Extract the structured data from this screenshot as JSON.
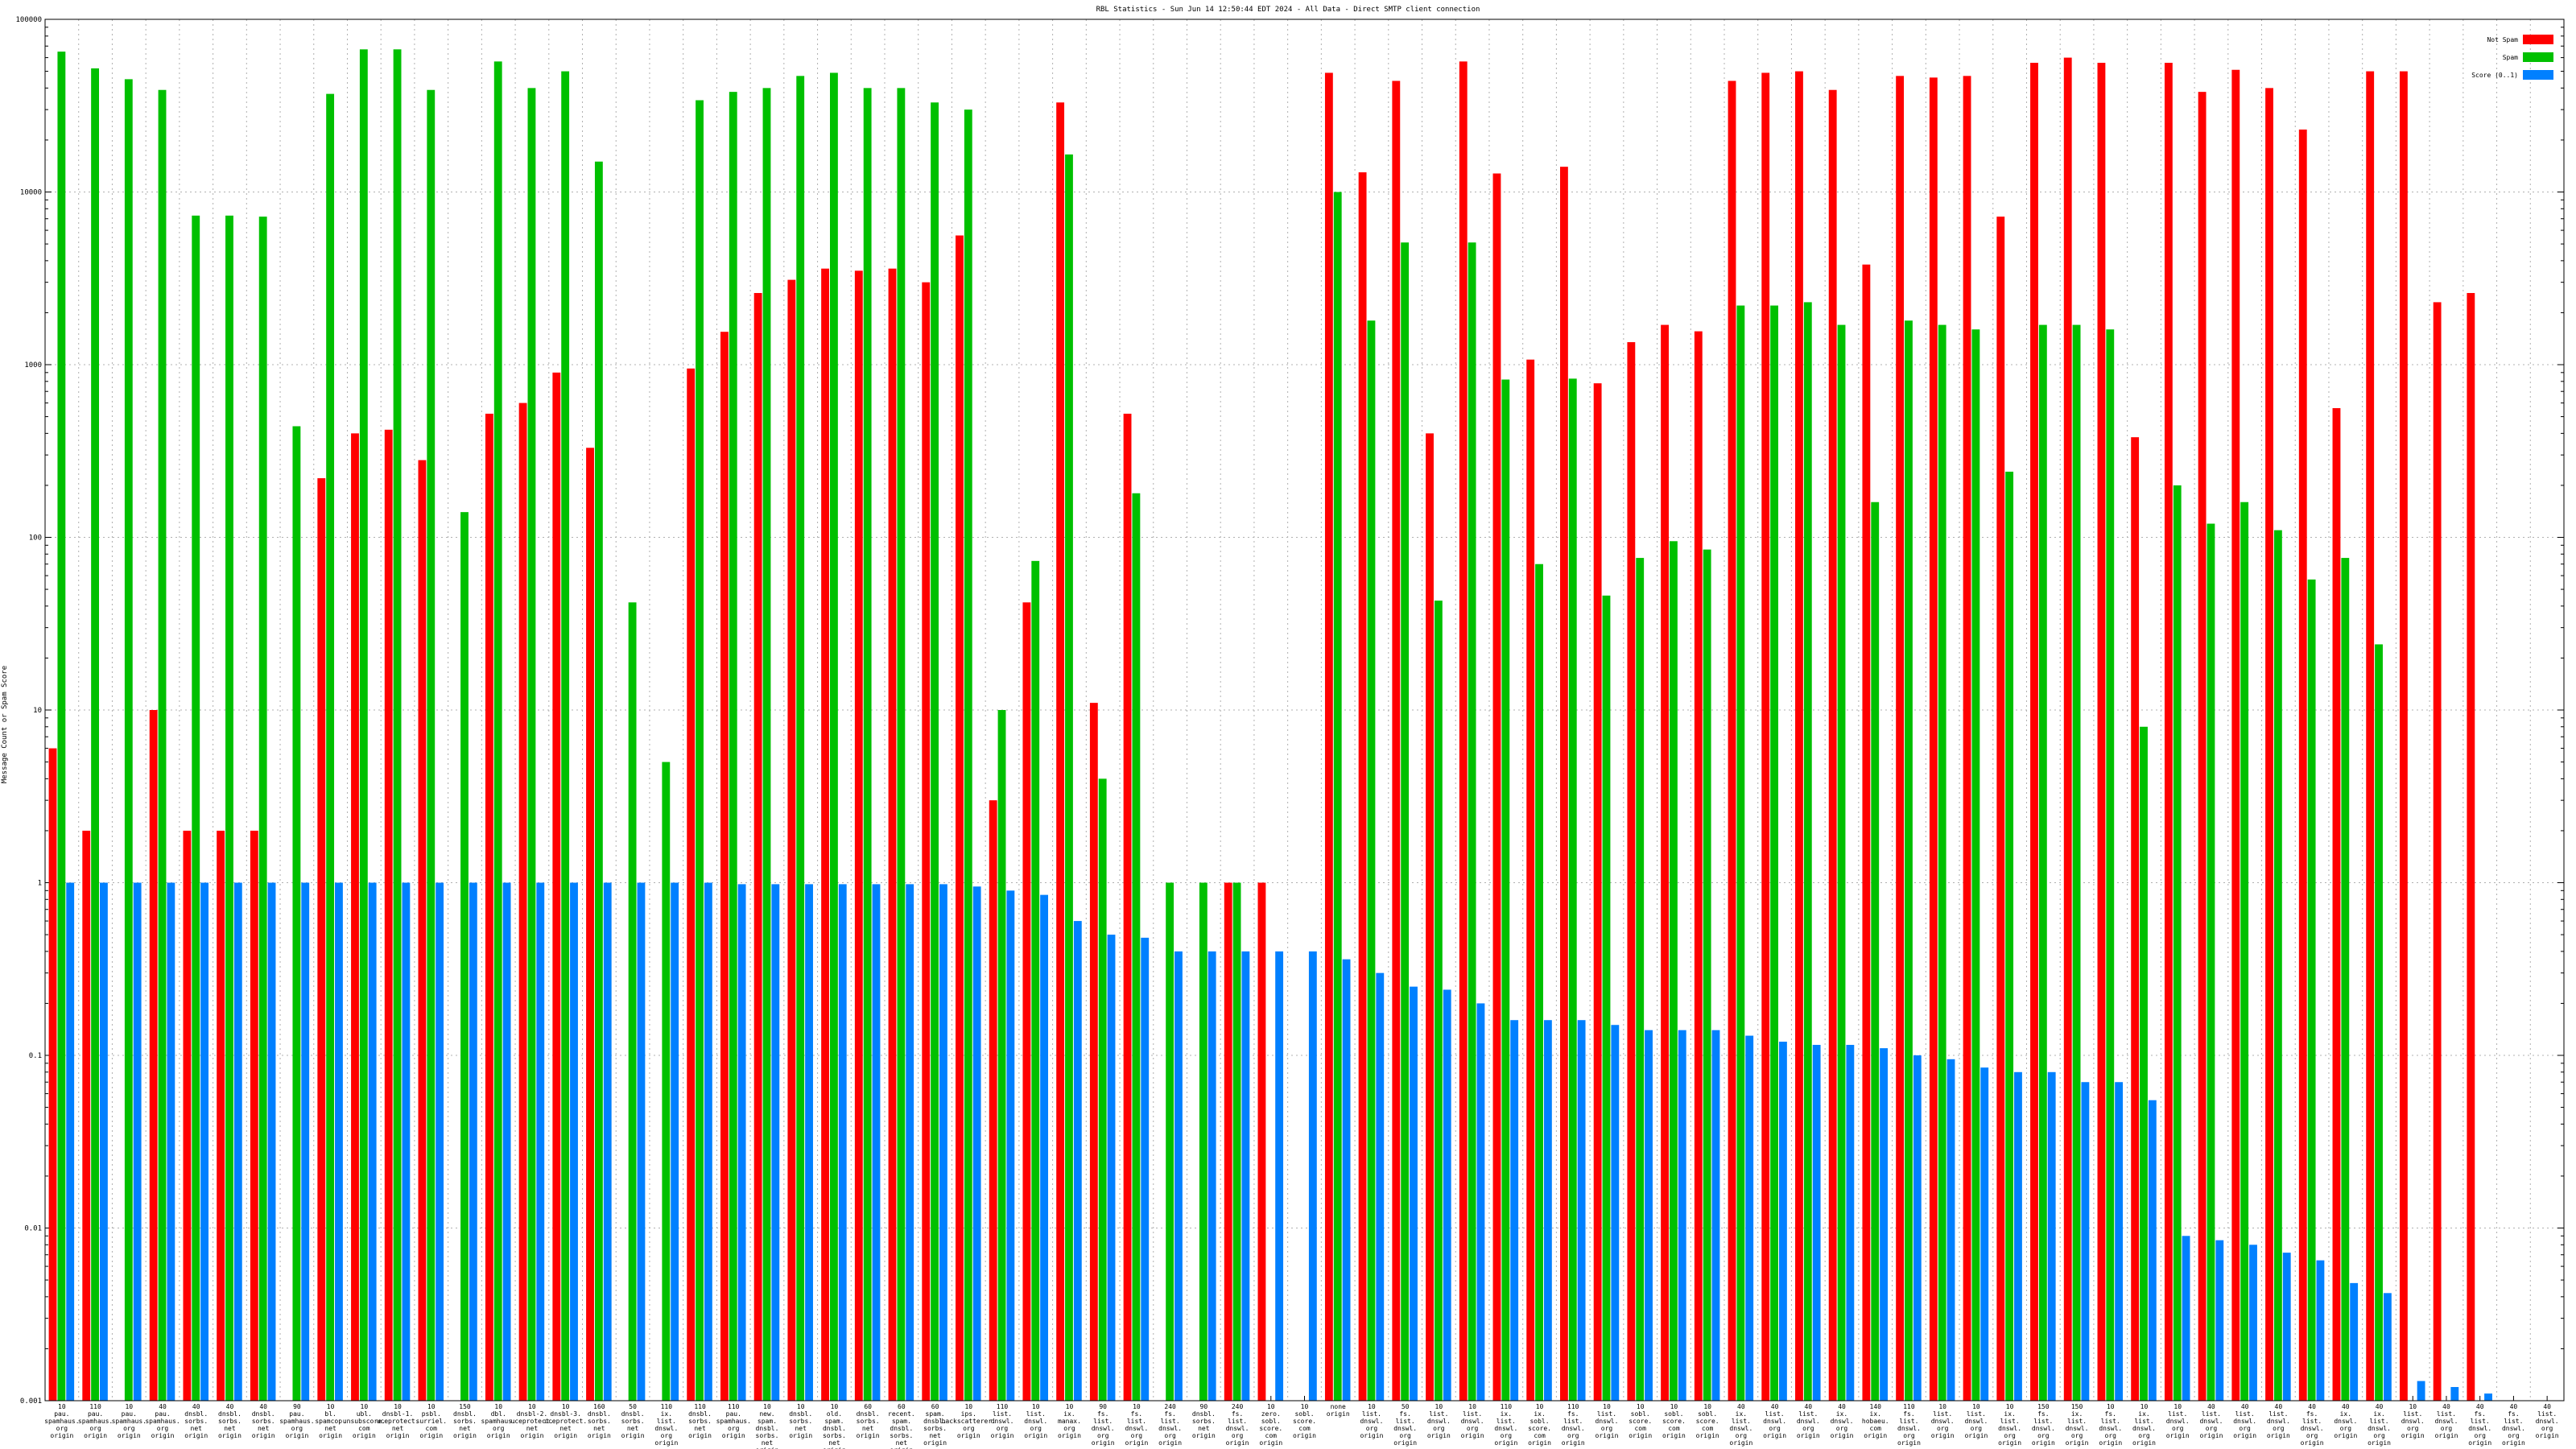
{
  "chart_data": {
    "type": "bar",
    "title": "RBL Statistics - Sun Jun 14 12:50:44 EDT 2024 - All Data - Direct SMTP client connection",
    "ylabel": "Message Count or Spam Score",
    "xlabel": "",
    "yscale": "log",
    "ylim": [
      0.001,
      100000
    ],
    "yticks": [
      {
        "v": 0.001,
        "label": "0.001"
      },
      {
        "v": 0.01,
        "label": "0.01"
      },
      {
        "v": 0.1,
        "label": "0.1"
      },
      {
        "v": 1,
        "label": "1"
      },
      {
        "v": 10,
        "label": "10"
      },
      {
        "v": 100,
        "label": "100"
      },
      {
        "v": 1000,
        "label": "1000"
      },
      {
        "v": 10000,
        "label": "10000"
      },
      {
        "v": 100000,
        "label": "100000"
      }
    ],
    "grid": true,
    "legend_position": "top-right",
    "categories": [
      "10 pau. spamhaus. org origin",
      "110 pau. spamhaus. org origin",
      "10 pau. spamhaus. org origin",
      "40 pau. spamhaus. org origin",
      "40 dnsbl. sorbs. net origin",
      "40 dnsbl. sorbs. net origin",
      "40 dnsbl. sorbs. net origin",
      "90 pau. spamhaus. org origin",
      "10 bl. spamcop. net origin",
      "10 ubl. unsubscore. com origin",
      "10 dnsbl-1. uceprotect. net origin",
      "10 psbl. surriel. com origin",
      "150 dnsbl. sorbs. net origin",
      "10 dbl. spamhaus. org origin",
      "10 dnsbl-2. uceprotect. net origin",
      "10 dnsbl-3. uceprotect. net origin",
      "160 dnsbl. sorbs. net origin",
      "50 dnsbl. sorbs. net origin",
      "110 ix. list. dnswl. org origin",
      "110 dnsbl. sorbs. net origin",
      "110 pau. spamhaus. org origin",
      "10 new. spam. dnsbl. sorbs. net origin",
      "10 dnsbl. sorbs. net origin",
      "10 old. spam. dnsbl. sorbs. net origin",
      "60 dnsbl. sorbs. net origin",
      "60 recent. spam. dnsbl. sorbs. net origin",
      "60 spam. dnsbl. sorbs. net origin",
      "10 ips. backscatterer. org origin",
      "110 list. dnswl. org origin",
      "10 list. dnswl. org origin",
      "10 ix. manax. org origin",
      "90 fs. list. dnswl. org origin",
      "10 fs. list. dnswl. org origin",
      "240 fs. list. dnswl. org origin",
      "90 dnsbl. sorbs. net origin",
      "240 fs. list. dnswl. org origin",
      "10 zero. sobl. score. com origin",
      "10 sobl. score. com origin",
      "none origin",
      "10 list. dnswl. org origin",
      "50 fs. list. dnswl. org origin",
      "10 list. dnswl. org origin",
      "10 list. dnswl. org origin",
      "110 ix. list. dnswl. org origin",
      "10 ix. sobl. score. com origin",
      "110 fs. list. dnswl. org origin",
      "10 list. dnswl. org origin",
      "10 sobl. score. com origin",
      "10 sobl. score. com origin",
      "10 sobl. score. com origin",
      "40 ix. list. dnswl. org origin",
      "40 list. dnswl. org origin",
      "40 list. dnswl. org origin",
      "40 ix. dnswl. org origin",
      "140 ix. hobaeu. com origin",
      "110 fs. list. dnswl. org origin",
      "10 list. dnswl. org origin",
      "10 list. dnswl. org origin",
      "10 ix. list. dnswl. org origin",
      "150 fs. list. dnswl. org origin",
      "150 ix. list. dnswl. org origin",
      "10 fs. list. dnswl. org origin",
      "10 ix. list. dnswl. org origin",
      "10 list. dnswl. org origin",
      "40 list. dnswl. org origin",
      "40 list. dnswl. org origin",
      "40 list. dnswl. org origin",
      "40 fs. list. dnswl. org origin",
      "40 ix. dnswl. org origin",
      "40 ix. list. dnswl. org origin",
      "10 list. dnswl. org origin",
      "40 list. dnswl. org origin",
      "40 fs. list. dnswl. org origin",
      "40 fs. list. dnswl. org origin",
      "40 list. dnswl. org origin"
    ],
    "series": [
      {
        "name": "Not Spam",
        "color": "#ff0000",
        "values": [
          6,
          2,
          null,
          10,
          2,
          2,
          2,
          null,
          220,
          400,
          420,
          280,
          null,
          520,
          600,
          900,
          330,
          null,
          null,
          950,
          1550,
          2600,
          3100,
          3600,
          3500,
          3600,
          3000,
          5600,
          3,
          42,
          33000,
          11,
          520,
          null,
          null,
          1,
          1,
          null,
          49000,
          13000,
          44000,
          400,
          57000,
          12800,
          1070,
          14000,
          780,
          1350,
          1700,
          1560,
          44000,
          49000,
          50000,
          39000,
          3800,
          47000,
          46000,
          47000,
          7200,
          56000,
          60000,
          56000,
          380,
          56000,
          38000,
          51000,
          40000,
          23000,
          560,
          50000,
          50000,
          2300,
          2600,
          null,
          null
        ]
      },
      {
        "name": "Spam",
        "color": "#00c000",
        "values": [
          65000,
          52000,
          45000,
          39000,
          7300,
          7300,
          7200,
          440,
          37000,
          67000,
          67000,
          39000,
          140,
          57000,
          40000,
          50000,
          15000,
          42,
          5,
          34000,
          38000,
          40000,
          47000,
          49000,
          40000,
          40000,
          33000,
          30000,
          10,
          73,
          16500,
          4,
          180,
          1,
          1,
          1,
          null,
          null,
          10000,
          1800,
          5100,
          43,
          5100,
          820,
          70,
          830,
          46,
          76,
          95,
          85,
          2200,
          2200,
          2300,
          1700,
          160,
          1800,
          1700,
          1600,
          240,
          1700,
          1700,
          1600,
          8,
          200,
          120,
          160,
          110,
          57,
          76,
          24,
          null,
          null,
          null,
          null,
          null
        ]
      },
      {
        "name": "Score (0..1)",
        "color": "#0080ff",
        "values": [
          1,
          1,
          1,
          1,
          1,
          1,
          1,
          1,
          1,
          1,
          1,
          1,
          1,
          1,
          1,
          1,
          1,
          1,
          1,
          1,
          0.98,
          0.98,
          0.98,
          0.98,
          0.98,
          0.98,
          0.98,
          0.95,
          0.9,
          0.85,
          0.6,
          0.5,
          0.48,
          0.4,
          0.4,
          0.4,
          0.4,
          0.4,
          0.36,
          0.3,
          0.25,
          0.24,
          0.2,
          0.16,
          0.16,
          0.16,
          0.15,
          0.14,
          0.14,
          0.14,
          0.13,
          0.12,
          0.115,
          0.115,
          0.11,
          0.1,
          0.095,
          0.085,
          0.08,
          0.08,
          0.07,
          0.07,
          0.055,
          0.009,
          0.0085,
          0.008,
          0.0072,
          0.0065,
          0.0048,
          0.0042,
          0.0013,
          0.0012,
          0.0011,
          null,
          null
        ]
      }
    ]
  }
}
